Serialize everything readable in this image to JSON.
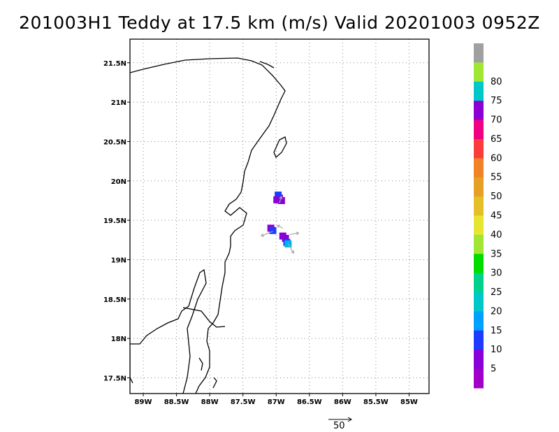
{
  "title": "201003H1 Teddy at 17.5 km (m/s) Valid 20201003 0952Z",
  "map": {
    "lon_range": [
      -89.2,
      -84.7
    ],
    "lat_range": [
      17.3,
      21.8
    ],
    "lat_ticks": [
      {
        "value": 21.5,
        "label": "21.5N"
      },
      {
        "value": 21.0,
        "label": "21N"
      },
      {
        "value": 20.5,
        "label": "20.5N"
      },
      {
        "value": 20.0,
        "label": "20N"
      },
      {
        "value": 19.5,
        "label": "19.5N"
      },
      {
        "value": 19.0,
        "label": "19N"
      },
      {
        "value": 18.5,
        "label": "18.5N"
      },
      {
        "value": 18.0,
        "label": "18N"
      },
      {
        "value": 17.5,
        "label": "17.5N"
      }
    ],
    "lon_ticks": [
      {
        "value": -89.0,
        "label": "89W"
      },
      {
        "value": -88.5,
        "label": "88.5W"
      },
      {
        "value": -88.0,
        "label": "88W"
      },
      {
        "value": -87.5,
        "label": "87.5W"
      },
      {
        "value": -87.0,
        "label": "87W"
      },
      {
        "value": -86.5,
        "label": "86.5W"
      },
      {
        "value": -86.0,
        "label": "86W"
      },
      {
        "value": -85.5,
        "label": "85.5W"
      },
      {
        "value": -85.0,
        "label": "85W"
      }
    ],
    "grid": "dotted",
    "coast_color": "#000000"
  },
  "wind_patches": [
    {
      "lon": -86.95,
      "lat": 19.78,
      "color": "#8a00d8"
    },
    {
      "lon": -86.92,
      "lat": 19.75,
      "color": "#8a00d8"
    },
    {
      "lon": -86.97,
      "lat": 19.82,
      "color": "#1e3cff"
    },
    {
      "lon": -86.99,
      "lat": 19.76,
      "color": "#8a00d8"
    },
    {
      "lon": -87.08,
      "lat": 19.4,
      "color": "#8a00d8"
    },
    {
      "lon": -87.05,
      "lat": 19.37,
      "color": "#1e3cff"
    },
    {
      "lon": -86.9,
      "lat": 19.3,
      "color": "#8a00d8"
    },
    {
      "lon": -86.86,
      "lat": 19.27,
      "color": "#8a00d8"
    },
    {
      "lon": -86.84,
      "lat": 19.22,
      "color": "#1e3cff"
    },
    {
      "lon": -86.82,
      "lat": 19.2,
      "color": "#00b4f0"
    }
  ],
  "wind_vectors": [
    {
      "lon": -86.95,
      "lat": 19.72,
      "u": 4,
      "v": 14
    },
    {
      "lon": -87.05,
      "lat": 19.36,
      "u": -25,
      "v": -10
    },
    {
      "lon": -86.82,
      "lat": 19.2,
      "u": 12,
      "v": -20
    },
    {
      "lon": -86.8,
      "lat": 19.32,
      "u": 20,
      "v": 3
    },
    {
      "lon": -86.9,
      "lat": 19.4,
      "u": -12,
      "v": 6
    }
  ],
  "vector_key": {
    "label": "50"
  },
  "colorbar": {
    "levels": [
      {
        "label": "",
        "color": "#a0a0a0"
      },
      {
        "label": "80",
        "color": "#a0e632"
      },
      {
        "label": "75",
        "color": "#00c8c8"
      },
      {
        "label": "70",
        "color": "#8c00d2"
      },
      {
        "label": "65",
        "color": "#f00082"
      },
      {
        "label": "60",
        "color": "#fa3c3c"
      },
      {
        "label": "55",
        "color": "#f08228"
      },
      {
        "label": "50",
        "color": "#e6a028"
      },
      {
        "label": "45",
        "color": "#e6be28"
      },
      {
        "label": "40",
        "color": "#e6e632"
      },
      {
        "label": "35",
        "color": "#a0e632"
      },
      {
        "label": "30",
        "color": "#00dc00"
      },
      {
        "label": "25",
        "color": "#00d28c"
      },
      {
        "label": "20",
        "color": "#00c8c8"
      },
      {
        "label": "15",
        "color": "#00a0ff"
      },
      {
        "label": "10",
        "color": "#1e3cff"
      },
      {
        "label": "5",
        "color": "#8a00d8"
      },
      {
        "label": "",
        "color": "#a000c8"
      }
    ]
  }
}
